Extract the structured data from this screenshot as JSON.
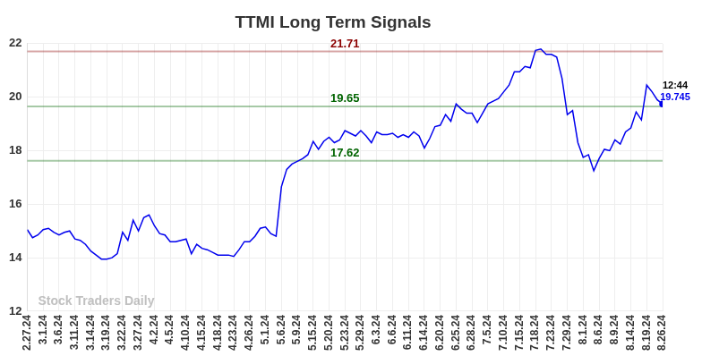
{
  "chart_data": {
    "type": "line",
    "title": "TTMI Long Term Signals",
    "watermark": "Stock Traders Daily",
    "categories": [
      "2.27.24",
      null,
      null,
      "3.1.24",
      null,
      null,
      "3.6.24",
      null,
      null,
      "3.11.24",
      null,
      null,
      "3.14.24",
      null,
      null,
      "3.19.24",
      null,
      null,
      "3.22.24",
      null,
      null,
      "3.27.24",
      null,
      null,
      "4.2.24",
      null,
      null,
      "4.5.24",
      null,
      null,
      "4.10.24",
      null,
      null,
      "4.15.24",
      null,
      null,
      "4.18.24",
      null,
      null,
      "4.23.24",
      null,
      null,
      "4.26.24",
      null,
      null,
      "5.1.24",
      null,
      null,
      "5.6.24",
      null,
      null,
      "5.9.24",
      null,
      null,
      "5.15.24",
      null,
      null,
      "5.20.24",
      null,
      null,
      "5.23.24",
      null,
      null,
      "5.29.24",
      null,
      null,
      "6.3.24",
      null,
      null,
      "6.6.24",
      null,
      null,
      "6.11.24",
      null,
      null,
      "6.14.24",
      null,
      null,
      "6.20.24",
      null,
      null,
      "6.25.24",
      null,
      null,
      "6.28.24",
      null,
      null,
      "7.5.24",
      null,
      null,
      "7.10.24",
      null,
      null,
      "7.15.24",
      null,
      null,
      "7.18.24",
      null,
      null,
      "7.23.24",
      null,
      null,
      "7.29.24",
      null,
      null,
      "8.1.24",
      null,
      null,
      "8.6.24",
      null,
      null,
      "8.9.24",
      null,
      null,
      "8.14.24",
      null,
      null,
      "8.19.24",
      null,
      null,
      "8.26.24"
    ],
    "values": [
      15.05,
      14.75,
      14.85,
      15.05,
      15.1,
      14.95,
      14.85,
      14.95,
      15.0,
      14.7,
      14.65,
      14.5,
      14.25,
      14.1,
      13.95,
      13.95,
      14.0,
      14.15,
      14.95,
      14.65,
      15.4,
      15.0,
      15.5,
      15.6,
      15.2,
      14.9,
      14.85,
      14.6,
      14.6,
      14.65,
      14.7,
      14.15,
      14.5,
      14.35,
      14.3,
      14.2,
      14.1,
      14.1,
      14.1,
      14.05,
      14.3,
      14.6,
      14.6,
      14.8,
      15.1,
      15.15,
      14.9,
      14.8,
      16.65,
      17.3,
      17.5,
      17.6,
      17.7,
      17.85,
      18.35,
      18.05,
      18.35,
      18.5,
      18.3,
      18.4,
      18.75,
      18.65,
      18.55,
      18.75,
      18.55,
      18.3,
      18.7,
      18.6,
      18.6,
      18.65,
      18.5,
      18.6,
      18.5,
      18.7,
      18.55,
      18.1,
      18.45,
      18.9,
      18.95,
      19.35,
      19.1,
      19.75,
      19.55,
      19.4,
      19.4,
      19.05,
      19.4,
      19.75,
      19.85,
      19.95,
      20.2,
      20.45,
      20.95,
      20.95,
      21.15,
      21.1,
      21.75,
      21.8,
      21.6,
      21.6,
      21.5,
      20.7,
      19.35,
      19.5,
      18.3,
      17.75,
      17.85,
      17.25,
      17.7,
      18.05,
      18.0,
      18.4,
      18.25,
      18.7,
      18.85,
      19.45,
      19.15,
      20.45,
      20.2,
      19.9,
      19.745
    ],
    "color": "#0000ee",
    "last_label": "12:44",
    "reference_lines": [
      {
        "value": 21.71,
        "label": "21.71",
        "color": "#8b0000"
      },
      {
        "value": 19.65,
        "label": "19.65",
        "color": "#006400"
      },
      {
        "value": 17.62,
        "label": "17.62",
        "color": "#006400"
      }
    ],
    "ylim": [
      12,
      22
    ],
    "yticks": [
      12,
      14,
      16,
      18,
      20,
      22
    ],
    "grid": true
  }
}
